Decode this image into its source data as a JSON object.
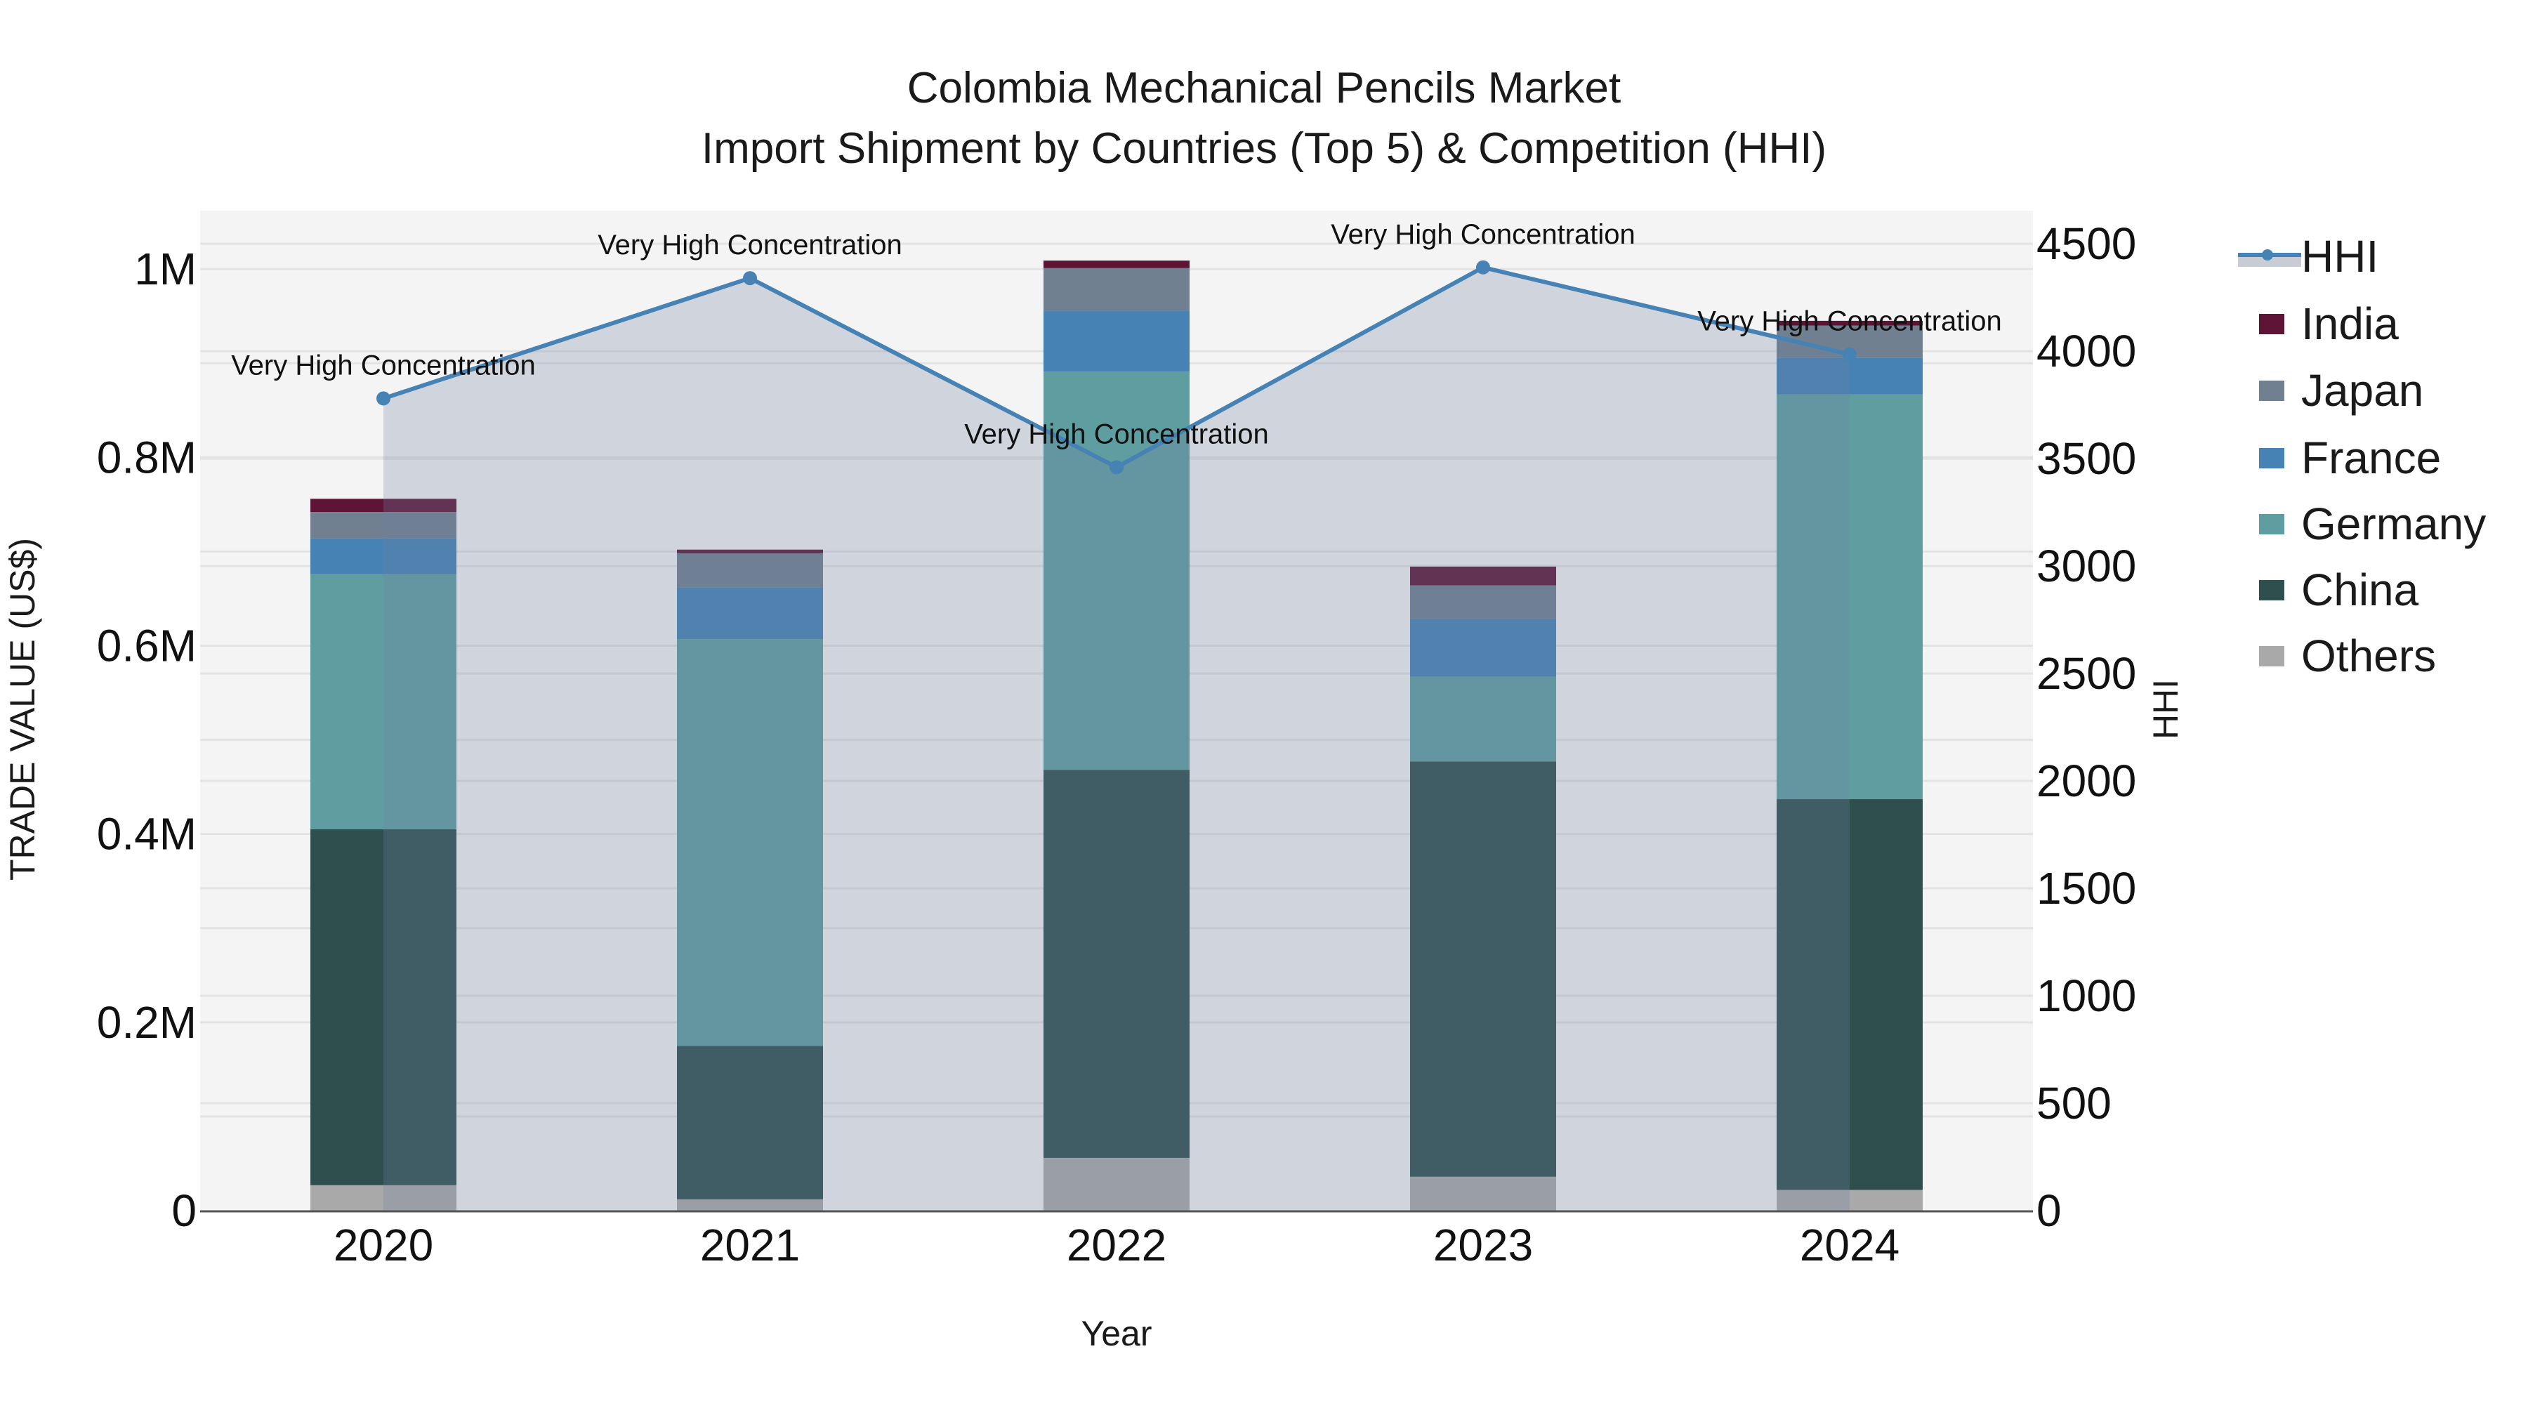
{
  "title": {
    "line1": "Colombia Mechanical Pencils Market",
    "line2": "Import Shipment by Countries (Top 5) & Competition (HHI)"
  },
  "axes": {
    "y_left_title": "TRADE VALUE (US$)",
    "y_right_title": "HHI",
    "x_title": "Year",
    "y_left_ticks": [
      "0",
      "0.2M",
      "0.4M",
      "0.6M",
      "0.8M",
      "1M"
    ],
    "y_right_ticks": [
      "0",
      "500",
      "1000",
      "1500",
      "2000",
      "2500",
      "3000",
      "3500",
      "4000",
      "4500"
    ]
  },
  "legend": {
    "items": [
      {
        "label": "HHI",
        "type": "line",
        "color": "#4682b4"
      },
      {
        "label": "India",
        "type": "bar",
        "color": "#5e1535"
      },
      {
        "label": "Japan",
        "type": "bar",
        "color": "#708090"
      },
      {
        "label": "France",
        "type": "bar",
        "color": "#4682b4"
      },
      {
        "label": "Germany",
        "type": "bar",
        "color": "#5f9ea0"
      },
      {
        "label": "China",
        "type": "bar",
        "color": "#2f4f4f"
      },
      {
        "label": "Others",
        "type": "bar",
        "color": "#a9a9a9"
      }
    ]
  },
  "colors": {
    "plot_bg": "#f4f4f4",
    "grid": "#e3e3e3",
    "hhi_line": "#4682b4",
    "hhi_fill": "rgba(112,128,160,0.28)"
  },
  "chart_data": {
    "type": "bar",
    "stacked": true,
    "title": "Colombia Mechanical Pencils Market — Import Shipment by Countries (Top 5) & Competition (HHI)",
    "xlabel": "Year",
    "ylabel": "TRADE VALUE (US$)",
    "y2label": "HHI",
    "categories": [
      "2020",
      "2021",
      "2022",
      "2023",
      "2024"
    ],
    "ylim": [
      0,
      1062000
    ],
    "y2lim": [
      0,
      4654
    ],
    "legend_position": "right",
    "grid": true,
    "series": [
      {
        "name": "Others",
        "color": "#a9a9a9",
        "values": [
          27000,
          12000,
          56000,
          36000,
          22000
        ]
      },
      {
        "name": "China",
        "color": "#2f4f4f",
        "values": [
          378000,
          163000,
          412000,
          441000,
          415000
        ]
      },
      {
        "name": "Germany",
        "color": "#5f9ea0",
        "values": [
          271000,
          432000,
          423000,
          90000,
          430000
        ]
      },
      {
        "name": "France",
        "color": "#4682b4",
        "values": [
          38000,
          55000,
          65000,
          61000,
          39000
        ]
      },
      {
        "name": "Japan",
        "color": "#708090",
        "values": [
          28000,
          36000,
          45000,
          36000,
          34000
        ]
      },
      {
        "name": "India",
        "color": "#5e1535",
        "values": [
          14000,
          4000,
          8000,
          20000,
          5000
        ]
      }
    ],
    "line_series": {
      "name": "HHI",
      "axis": "y2",
      "color": "#4682b4",
      "values": [
        3780,
        4340,
        3460,
        4390,
        3985
      ],
      "annotations": [
        "Very High Concentration",
        "Very High Concentration",
        "Very High Concentration",
        "Very High Concentration",
        "Very High Concentration"
      ]
    }
  }
}
